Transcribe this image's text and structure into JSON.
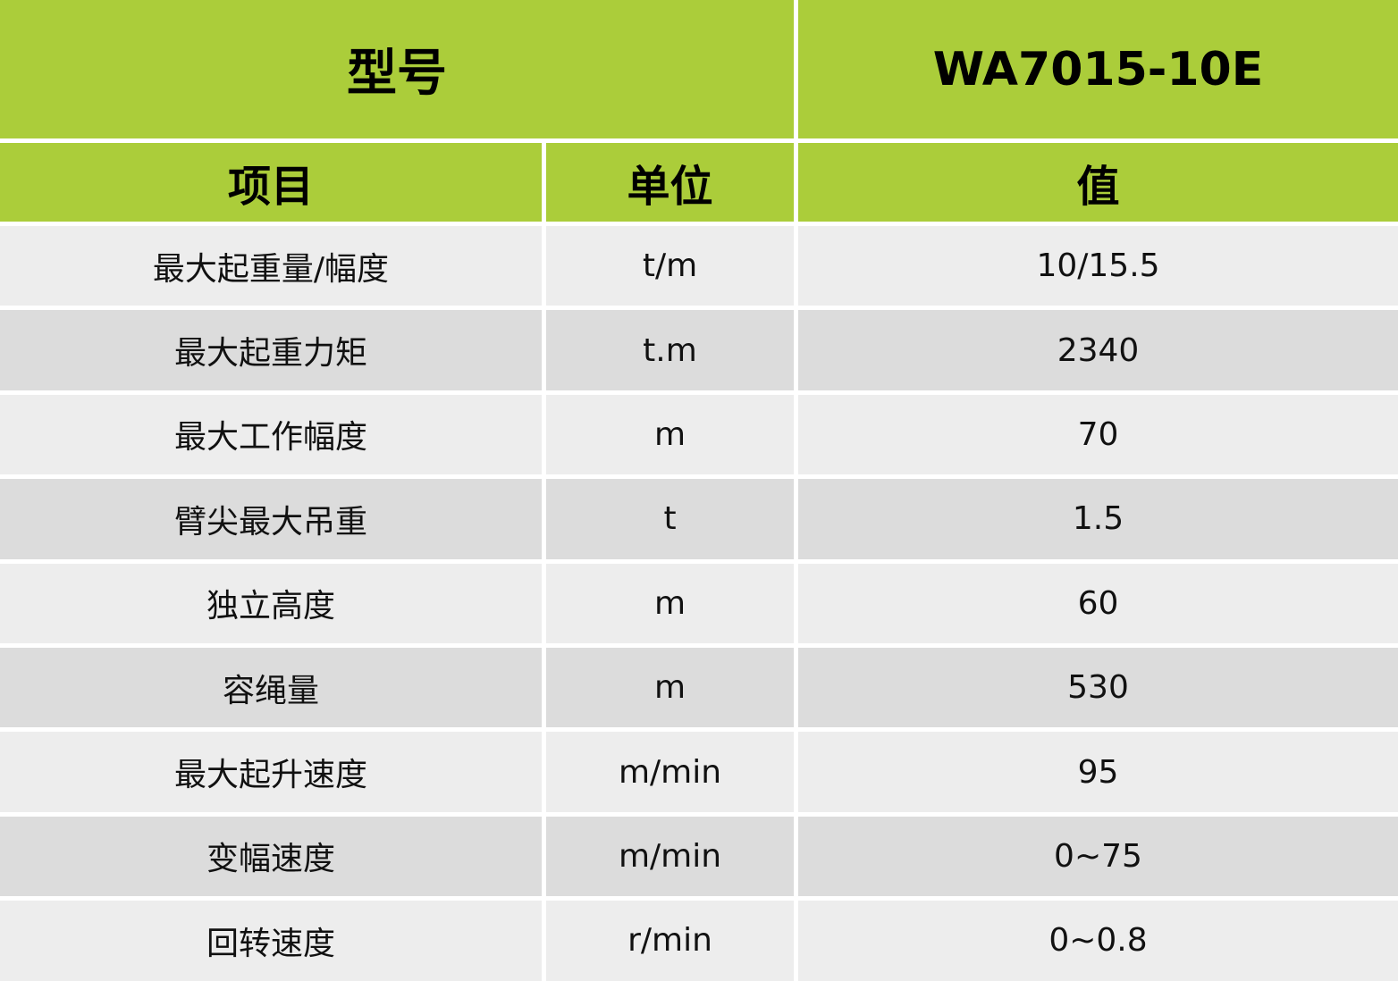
{
  "colors": {
    "header_green": "#abcd3a",
    "row_light": "#ededed",
    "row_dark": "#dcdcdc"
  },
  "model": {
    "label": "型号",
    "value": "WA7015-10E"
  },
  "columns": {
    "item": "项目",
    "unit": "单位",
    "value": "值"
  },
  "rows": [
    {
      "item": "最大起重量/幅度",
      "unit": "t/m",
      "value": "10/15.5"
    },
    {
      "item": "最大起重力矩",
      "unit": "t.m",
      "value": "2340"
    },
    {
      "item": "最大工作幅度",
      "unit": "m",
      "value": "70"
    },
    {
      "item": "臂尖最大吊重",
      "unit": "t",
      "value": "1.5"
    },
    {
      "item": "独立高度",
      "unit": "m",
      "value": "60"
    },
    {
      "item": "容绳量",
      "unit": "m",
      "value": "530"
    },
    {
      "item": "最大起升速度",
      "unit": "m/min",
      "value": "95"
    },
    {
      "item": "变幅速度",
      "unit": "m/min",
      "value": "0~75"
    },
    {
      "item": "回转速度",
      "unit": "r/min",
      "value": "0~0.8"
    }
  ]
}
